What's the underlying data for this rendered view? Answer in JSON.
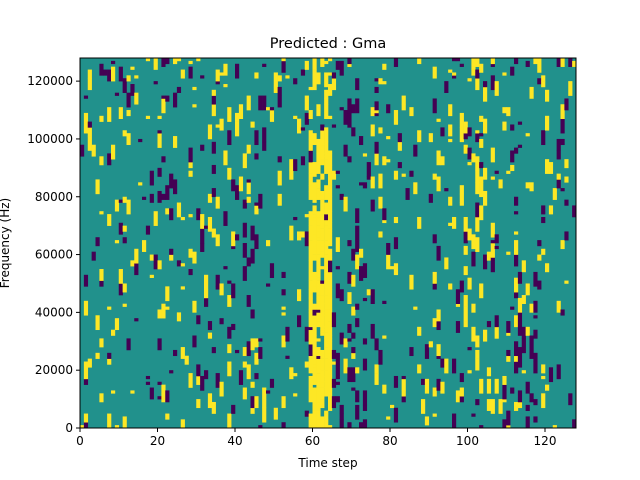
{
  "chart_data": {
    "type": "heatmap",
    "title": "Predicted : Gma",
    "xlabel": "Time step",
    "ylabel": "Frequency (Hz)",
    "xlim": [
      0,
      128
    ],
    "ylim": [
      0,
      128000
    ],
    "x_ticks": [
      0,
      20,
      40,
      60,
      80,
      100,
      120
    ],
    "y_ticks": [
      0,
      20000,
      40000,
      60000,
      80000,
      100000,
      120000
    ],
    "x_tick_labels": [
      "0",
      "20",
      "40",
      "60",
      "80",
      "100",
      "120"
    ],
    "y_tick_labels": [
      "0",
      "20000",
      "40000",
      "60000",
      "80000",
      "100000",
      "120000"
    ],
    "grid": false,
    "colormap": "viridis",
    "colors": {
      "low": "#440154",
      "mid": "#21918c",
      "high": "#fde725"
    },
    "grid_size": {
      "time_steps": 128,
      "frequency_bins": 128
    },
    "bright_band": {
      "time_start": 59,
      "time_end": 64
    },
    "secondary_band": {
      "time_start": 100,
      "time_end": 104
    }
  }
}
